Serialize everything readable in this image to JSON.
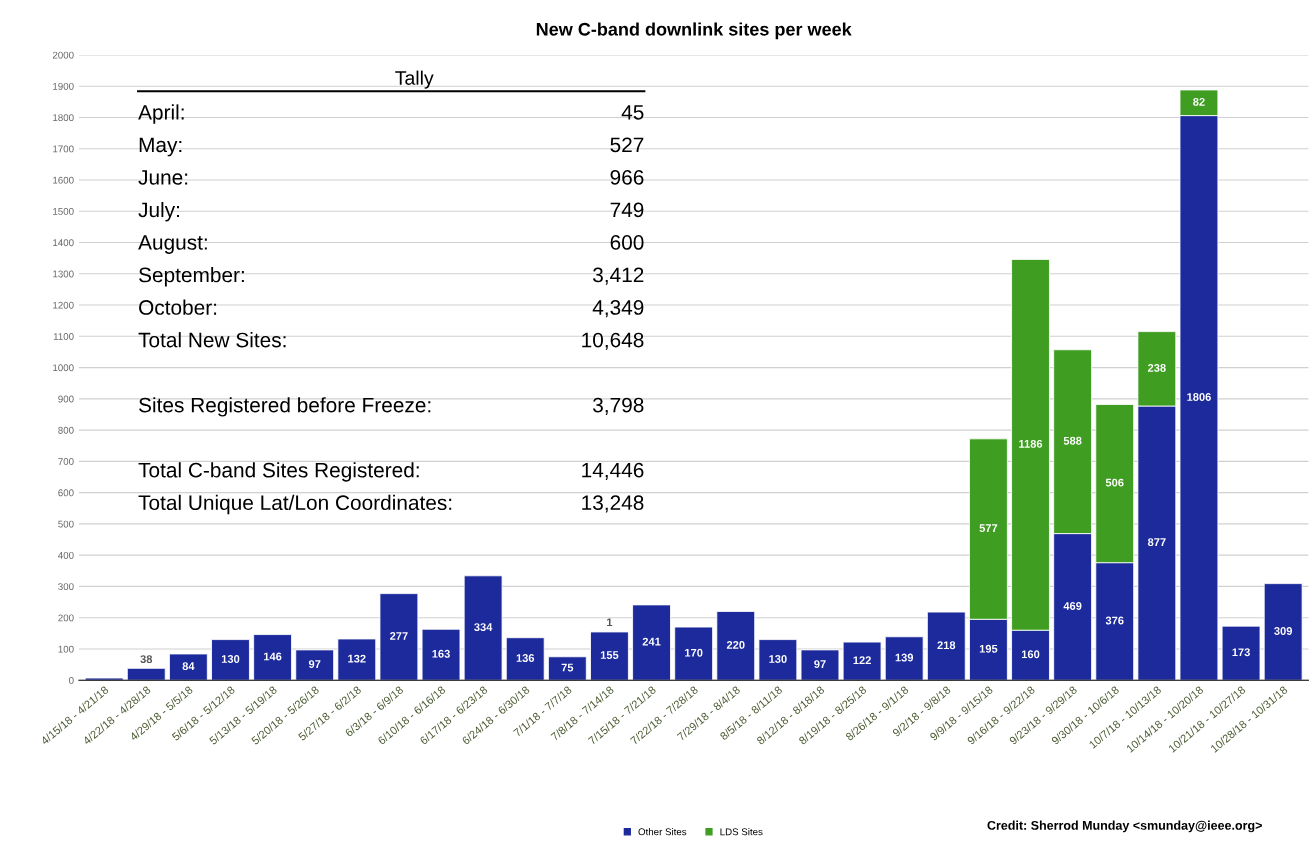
{
  "chart_data": {
    "type": "bar",
    "title": "New C-band downlink sites per week",
    "stacked": true,
    "grid": "y",
    "legend": "bottom",
    "categories": [
      "4/15/18 - 4/21/18",
      "4/22/18 - 4/28/18",
      "4/29/18 - 5/5/18",
      "5/6/18 - 5/12/18",
      "5/13/18 - 5/19/18",
      "5/20/18 - 5/26/18",
      "5/27/18 - 6/2/18",
      "6/3/18 - 6/9/18",
      "6/10/18 - 6/16/18",
      "6/17/18 - 6/23/18",
      "6/24/18 - 6/30/18",
      "7/1/18 - 7/7/18",
      "7/8/18 - 7/14/18",
      "7/15/18 - 7/21/18",
      "7/22/18 - 7/28/18",
      "7/29/18 - 8/4/18",
      "8/5/18 - 8/11/18",
      "8/12/18 - 8/18/18",
      "8/19/18 - 8/25/18",
      "8/26/18 - 9/1/18",
      "9/2/18 - 9/8/18",
      "9/9/18 - 9/15/18",
      "9/16/18 - 9/22/18",
      "9/23/18 - 9/29/18",
      "9/30/18 - 10/6/18",
      "10/7/18 - 10/13/18",
      "10/14/18 - 10/20/18",
      "10/21/18 - 10/27/18",
      "10/28/18 - 10/31/18"
    ],
    "series": [
      {
        "name": "Other Sites",
        "color": "#1c2a9c",
        "values": [
          7,
          38,
          84,
          130,
          146,
          97,
          132,
          277,
          163,
          334,
          136,
          75,
          155,
          241,
          170,
          220,
          130,
          97,
          122,
          139,
          218,
          195,
          160,
          469,
          376,
          877,
          1806,
          173,
          309
        ],
        "value_labels": [
          null,
          "38",
          "84",
          "130",
          "146",
          "97",
          "132",
          "277",
          "163",
          "334",
          "136",
          "75",
          "155",
          "241",
          "170",
          "220",
          "130",
          "97",
          "122",
          "139",
          "218",
          "195",
          "160",
          "469",
          "376",
          "877",
          "1806",
          "173",
          "309"
        ]
      },
      {
        "name": "LDS Sites",
        "color": "#3f9e22",
        "values": [
          null,
          null,
          null,
          null,
          null,
          null,
          null,
          null,
          null,
          null,
          null,
          null,
          1,
          null,
          null,
          null,
          null,
          null,
          null,
          null,
          null,
          577,
          1186,
          588,
          506,
          238,
          82,
          null,
          null
        ],
        "value_labels": [
          null,
          null,
          null,
          null,
          null,
          null,
          null,
          null,
          null,
          null,
          null,
          null,
          "1",
          null,
          null,
          null,
          null,
          null,
          null,
          null,
          null,
          "577",
          "1186",
          "588",
          "506",
          "238",
          "82",
          null,
          null
        ]
      }
    ],
    "ylim": [
      0,
      2000
    ],
    "yticks": [
      0,
      100,
      200,
      300,
      400,
      500,
      600,
      700,
      800,
      900,
      1000,
      1100,
      1200,
      1300,
      1400,
      1500,
      1600,
      1700,
      1800,
      1900,
      2000
    ],
    "annotations": [
      "Tally",
      "April:",
      "45",
      "May:",
      "527",
      "June:",
      "966",
      "July:",
      "749",
      "August:",
      "600",
      "September:",
      "3,412",
      "October:",
      "4,349",
      "Total New Sites:",
      "10,648",
      "Sites Registered before Freeze:",
      "3,798",
      "Total C-band Sites Registered:",
      "14,446",
      "Total Unique Lat/Lon Coordinates:",
      "13,248",
      "Credit: Sherrod Munday <smunday@ieee.org>"
    ]
  }
}
